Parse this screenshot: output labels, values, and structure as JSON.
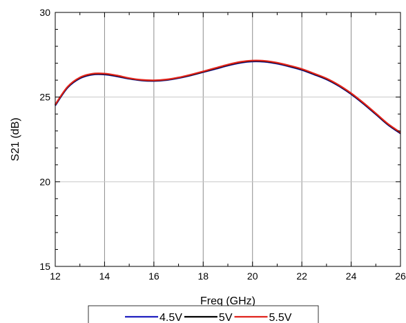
{
  "chart_data": {
    "type": "line",
    "xlabel": "Freq (GHz)",
    "ylabel": "S21 (dB)",
    "xlim": [
      12,
      26
    ],
    "ylim": [
      15,
      30
    ],
    "xticks": [
      12,
      14,
      16,
      18,
      20,
      22,
      24,
      26
    ],
    "yticks": [
      15,
      20,
      25,
      30
    ],
    "grid": true,
    "legend_position": "bottom",
    "series": [
      {
        "name": "4.5V",
        "color": "#1f1fbf",
        "x": [
          12,
          12.5,
          13,
          13.5,
          14,
          14.5,
          15,
          15.5,
          16,
          16.5,
          17,
          17.5,
          18,
          18.5,
          19,
          19.5,
          20,
          20.5,
          21,
          21.5,
          22,
          22.5,
          23,
          23.5,
          24,
          24.5,
          25,
          25.5,
          26
        ],
        "y": [
          24.5,
          25.55,
          26.1,
          26.32,
          26.33,
          26.22,
          26.08,
          25.98,
          25.95,
          26.0,
          26.12,
          26.28,
          26.47,
          26.66,
          26.86,
          27.02,
          27.1,
          27.08,
          26.97,
          26.8,
          26.6,
          26.33,
          26.04,
          25.65,
          25.17,
          24.6,
          23.98,
          23.35,
          22.85
        ]
      },
      {
        "name": "5V",
        "color": "#000000",
        "x": [
          12,
          12.5,
          13,
          13.5,
          14,
          14.5,
          15,
          15.5,
          16,
          16.5,
          17,
          17.5,
          18,
          18.5,
          19,
          19.5,
          20,
          20.5,
          21,
          21.5,
          22,
          22.5,
          23,
          23.5,
          24,
          24.5,
          25,
          25.5,
          26
        ],
        "y": [
          24.53,
          25.58,
          26.13,
          26.35,
          26.36,
          26.25,
          26.1,
          26.0,
          25.97,
          26.02,
          26.14,
          26.3,
          26.49,
          26.69,
          26.89,
          27.05,
          27.13,
          27.11,
          27.0,
          26.83,
          26.63,
          26.36,
          26.07,
          25.68,
          25.2,
          24.63,
          24.01,
          23.38,
          22.88
        ]
      },
      {
        "name": "5.5V",
        "color": "#e0231c",
        "x": [
          12,
          12.5,
          13,
          13.5,
          14,
          14.5,
          15,
          15.5,
          16,
          16.5,
          17,
          17.5,
          18,
          18.5,
          19,
          19.5,
          20,
          20.5,
          21,
          21.5,
          22,
          22.5,
          23,
          23.5,
          24,
          24.5,
          25,
          25.5,
          26
        ],
        "y": [
          24.56,
          25.61,
          26.16,
          26.38,
          26.39,
          26.28,
          26.12,
          26.02,
          25.99,
          26.04,
          26.16,
          26.33,
          26.52,
          26.72,
          26.92,
          27.08,
          27.16,
          27.14,
          27.03,
          26.86,
          26.66,
          26.39,
          26.1,
          25.71,
          25.23,
          24.66,
          24.04,
          23.41,
          22.91
        ]
      }
    ]
  }
}
